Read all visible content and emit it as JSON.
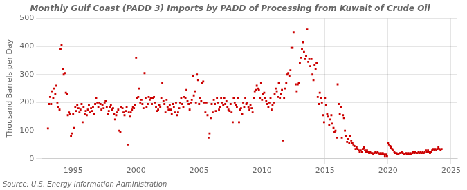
{
  "chart_data": {
    "type": "scatter",
    "title": "Monthly Gulf Coast (PADD 3) Imports by PADD of Processing from Kuwait of Crude Oil",
    "ylabel": "Thousand Barrels per Day",
    "annotations": [
      "Source: U.S. Energy Information Administration"
    ],
    "color": "#cc0000",
    "marker": "square",
    "grid": true,
    "xlim": [
      1992.5,
      2025.5
    ],
    "ylim": [
      0,
      500
    ],
    "xticks": [
      1995,
      2000,
      2005,
      2010,
      2015,
      2020,
      2025
    ],
    "yticks": [
      0,
      100,
      200,
      300,
      400,
      500
    ],
    "x": [
      1993.0,
      1993.08,
      1993.17,
      1993.25,
      1993.33,
      1993.42,
      1993.5,
      1993.58,
      1993.67,
      1993.75,
      1993.83,
      1993.92,
      1994.0,
      1994.08,
      1994.17,
      1994.25,
      1994.33,
      1994.42,
      1994.5,
      1994.58,
      1994.67,
      1994.75,
      1994.83,
      1994.92,
      1995.0,
      1995.08,
      1995.17,
      1995.25,
      1995.33,
      1995.42,
      1995.5,
      1995.58,
      1995.67,
      1995.75,
      1995.83,
      1995.92,
      1996.0,
      1996.08,
      1996.17,
      1996.25,
      1996.33,
      1996.42,
      1996.5,
      1996.58,
      1996.67,
      1996.75,
      1996.83,
      1996.92,
      1997.0,
      1997.08,
      1997.17,
      1997.25,
      1997.33,
      1997.42,
      1997.5,
      1997.58,
      1997.67,
      1997.75,
      1997.83,
      1997.92,
      1998.0,
      1998.08,
      1998.17,
      1998.25,
      1998.33,
      1998.42,
      1998.5,
      1998.58,
      1998.67,
      1998.75,
      1998.83,
      1998.92,
      1999.0,
      1999.08,
      1999.17,
      1999.25,
      1999.33,
      1999.42,
      1999.5,
      1999.58,
      1999.67,
      1999.75,
      1999.83,
      1999.92,
      2000.0,
      2000.08,
      2000.17,
      2000.25,
      2000.33,
      2000.42,
      2000.5,
      2000.58,
      2000.67,
      2000.75,
      2000.83,
      2000.92,
      2001.0,
      2001.08,
      2001.17,
      2001.25,
      2001.33,
      2001.42,
      2001.5,
      2001.58,
      2001.67,
      2001.75,
      2001.83,
      2001.92,
      2002.0,
      2002.08,
      2002.17,
      2002.25,
      2002.33,
      2002.42,
      2002.5,
      2002.58,
      2002.67,
      2002.75,
      2002.83,
      2002.92,
      2003.0,
      2003.08,
      2003.17,
      2003.25,
      2003.33,
      2003.42,
      2003.5,
      2003.58,
      2003.67,
      2003.75,
      2003.83,
      2003.92,
      2004.0,
      2004.08,
      2004.17,
      2004.25,
      2004.33,
      2004.42,
      2004.5,
      2004.58,
      2004.67,
      2004.75,
      2004.83,
      2004.92,
      2005.0,
      2005.08,
      2005.17,
      2005.25,
      2005.33,
      2005.42,
      2005.5,
      2005.58,
      2005.67,
      2005.75,
      2005.83,
      2005.92,
      2006.0,
      2006.08,
      2006.17,
      2006.25,
      2006.33,
      2006.42,
      2006.5,
      2006.58,
      2006.67,
      2006.75,
      2006.83,
      2006.92,
      2007.0,
      2007.08,
      2007.17,
      2007.25,
      2007.33,
      2007.42,
      2007.5,
      2007.58,
      2007.67,
      2007.75,
      2007.83,
      2007.92,
      2008.0,
      2008.08,
      2008.17,
      2008.25,
      2008.33,
      2008.42,
      2008.5,
      2008.58,
      2008.67,
      2008.75,
      2008.83,
      2008.92,
      2009.0,
      2009.08,
      2009.17,
      2009.25,
      2009.33,
      2009.42,
      2009.5,
      2009.58,
      2009.67,
      2009.75,
      2009.83,
      2009.92,
      2010.0,
      2010.08,
      2010.17,
      2010.25,
      2010.33,
      2010.42,
      2010.5,
      2010.58,
      2010.67,
      2010.75,
      2010.83,
      2010.92,
      2011.0,
      2011.08,
      2011.17,
      2011.25,
      2011.33,
      2011.42,
      2011.5,
      2011.58,
      2011.67,
      2011.75,
      2011.83,
      2011.92,
      2012.0,
      2012.08,
      2012.17,
      2012.25,
      2012.33,
      2012.42,
      2012.5,
      2012.67,
      2012.75,
      2012.83,
      2012.92,
      2013.0,
      2013.08,
      2013.17,
      2013.25,
      2013.33,
      2013.42,
      2013.5,
      2013.58,
      2013.67,
      2013.75,
      2013.83,
      2013.92,
      2014.0,
      2014.08,
      2014.17,
      2014.25,
      2014.33,
      2014.42,
      2014.5,
      2014.58,
      2014.67,
      2014.75,
      2014.83,
      2014.92,
      2015.0,
      2015.08,
      2015.17,
      2015.25,
      2015.33,
      2015.42,
      2015.5,
      2015.58,
      2015.67,
      2015.75,
      2015.83,
      2015.92,
      2016.0,
      2016.08,
      2016.17,
      2016.25,
      2016.33,
      2016.42,
      2016.5,
      2016.58,
      2016.67,
      2016.75,
      2016.83,
      2016.92,
      2017.0,
      2017.08,
      2017.17,
      2017.25,
      2017.33,
      2017.42,
      2017.5,
      2017.58,
      2017.67,
      2017.75,
      2017.83,
      2017.92,
      2018.0,
      2018.08,
      2018.17,
      2018.25,
      2018.33,
      2018.42,
      2018.5,
      2018.58,
      2018.67,
      2018.75,
      2018.83,
      2018.92,
      2019.0,
      2019.08,
      2019.17,
      2019.25,
      2019.33,
      2019.42,
      2019.5,
      2019.58,
      2019.67,
      2019.75,
      2019.83,
      2019.92,
      2020.0,
      2020.08,
      2020.17,
      2020.25,
      2020.33,
      2020.42,
      2020.5,
      2020.58,
      2020.67,
      2020.75,
      2020.83,
      2020.92,
      2021.0,
      2021.08,
      2021.17,
      2021.25,
      2021.33,
      2021.42,
      2021.5,
      2021.58,
      2021.67,
      2021.75,
      2021.83,
      2021.92,
      2022.0,
      2022.08,
      2022.17,
      2022.25,
      2022.33,
      2022.42,
      2022.5,
      2022.58,
      2022.67,
      2022.75,
      2022.83,
      2022.92,
      2023.0,
      2023.08,
      2023.17,
      2023.25,
      2023.33,
      2023.42,
      2023.5,
      2023.58,
      2023.67,
      2023.75,
      2023.83,
      2023.92,
      2024.0,
      2024.08,
      2024.17,
      2024.25
    ],
    "values": [
      108,
      195,
      220,
      195,
      240,
      215,
      250,
      230,
      260,
      200,
      185,
      175,
      390,
      405,
      320,
      300,
      305,
      235,
      230,
      155,
      165,
      160,
      80,
      90,
      160,
      110,
      185,
      170,
      190,
      180,
      165,
      175,
      195,
      130,
      185,
      160,
      170,
      155,
      175,
      190,
      165,
      180,
      170,
      185,
      160,
      195,
      215,
      200,
      185,
      200,
      195,
      175,
      190,
      180,
      200,
      205,
      185,
      160,
      170,
      185,
      190,
      175,
      180,
      160,
      140,
      155,
      165,
      175,
      100,
      95,
      185,
      180,
      165,
      155,
      170,
      185,
      50,
      165,
      150,
      165,
      175,
      185,
      180,
      190,
      360,
      215,
      220,
      250,
      200,
      210,
      195,
      180,
      305,
      215,
      185,
      195,
      220,
      210,
      215,
      195,
      215,
      220,
      200,
      185,
      170,
      175,
      190,
      185,
      215,
      270,
      205,
      195,
      165,
      210,
      185,
      175,
      190,
      175,
      160,
      195,
      185,
      165,
      200,
      155,
      165,
      180,
      200,
      215,
      195,
      185,
      220,
      215,
      245,
      205,
      195,
      175,
      200,
      210,
      295,
      225,
      240,
      200,
      300,
      280,
      195,
      215,
      205,
      270,
      275,
      200,
      165,
      200,
      155,
      75,
      90,
      145,
      195,
      165,
      210,
      195,
      170,
      215,
      200,
      175,
      185,
      215,
      200,
      190,
      215,
      195,
      205,
      185,
      175,
      170,
      195,
      165,
      130,
      215,
      200,
      190,
      185,
      215,
      130,
      175,
      180,
      160,
      200,
      185,
      215,
      195,
      200,
      185,
      175,
      190,
      180,
      165,
      215,
      240,
      245,
      260,
      250,
      245,
      215,
      270,
      210,
      230,
      235,
      215,
      205,
      195,
      185,
      200,
      215,
      175,
      190,
      200,
      230,
      250,
      240,
      220,
      270,
      215,
      230,
      245,
      65,
      215,
      250,
      270,
      300,
      305,
      295,
      315,
      395,
      395,
      450,
      265,
      240,
      265,
      270,
      340,
      360,
      390,
      415,
      380,
      355,
      365,
      460,
      345,
      355,
      330,
      355,
      300,
      280,
      335,
      320,
      340,
      220,
      195,
      235,
      215,
      200,
      155,
      130,
      215,
      190,
      160,
      150,
      120,
      140,
      155,
      125,
      110,
      95,
      100,
      75,
      265,
      195,
      160,
      185,
      75,
      155,
      145,
      100,
      80,
      60,
      70,
      55,
      80,
      65,
      55,
      50,
      45,
      35,
      40,
      35,
      30,
      25,
      30,
      25,
      35,
      40,
      30,
      25,
      30,
      25,
      20,
      25,
      20,
      20,
      15,
      20,
      25,
      20,
      25,
      20,
      15,
      20,
      15,
      20,
      15,
      10,
      15,
      10,
      55,
      50,
      45,
      40,
      35,
      30,
      25,
      20,
      20,
      15,
      15,
      20,
      20,
      25,
      20,
      15,
      15,
      20,
      15,
      20,
      15,
      20,
      15,
      20,
      25,
      20,
      25,
      20,
      20,
      25,
      20,
      25,
      20,
      25,
      20,
      25,
      30,
      25,
      30,
      25,
      20,
      25,
      30,
      35,
      30,
      35,
      30,
      35,
      40,
      35,
      30,
      35
    ]
  }
}
